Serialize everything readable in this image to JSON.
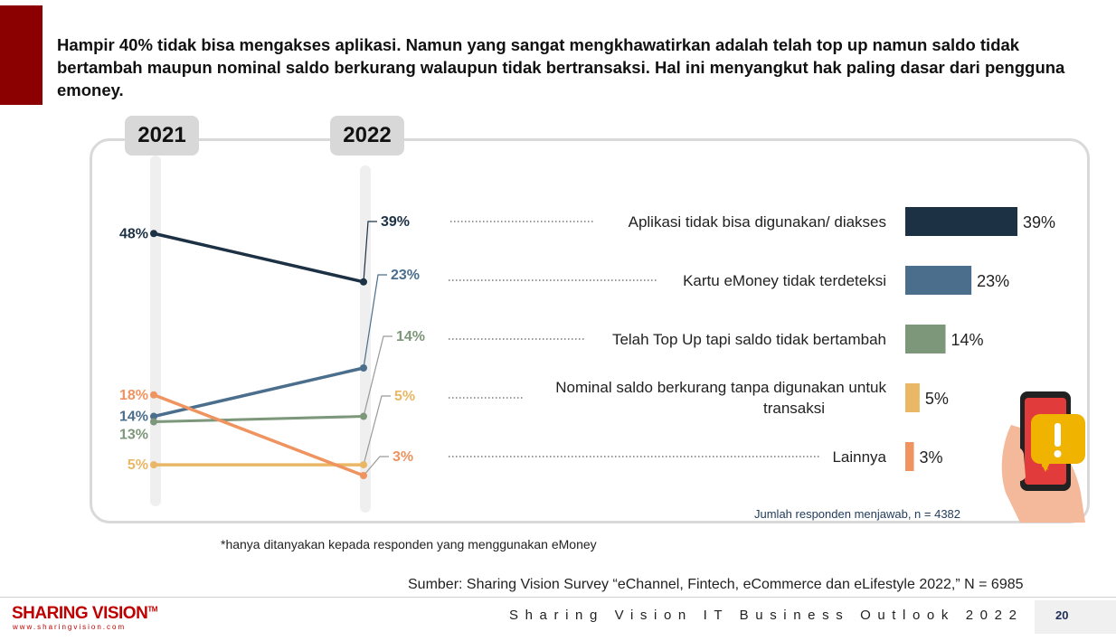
{
  "headline": "Hampir 40% tidak bisa mengakses aplikasi. Namun yang sangat mengkhawatirkan adalah telah top up namun saldo tidak bertambah maupun nominal saldo berkurang walaupun tidak bertransaksi. Hal ini menyangkut hak paling dasar dari pengguna emoney.",
  "years": [
    "2021",
    "2022"
  ],
  "chart_data": [
    {
      "type": "line",
      "x": [
        "2021",
        "2022"
      ],
      "series": [
        {
          "values": [
            48,
            39
          ],
          "labels": [
            "48%",
            "39%"
          ],
          "color": "#1d3145"
        },
        {
          "values": [
            14,
            23
          ],
          "labels": [
            "14%",
            "23%"
          ],
          "color": "#4a6e8c"
        },
        {
          "values": [
            13,
            14
          ],
          "labels": [
            "13%",
            "14%"
          ],
          "color": "#7d977a"
        },
        {
          "values": [
            5,
            5
          ],
          "labels": [
            "5%",
            "5%"
          ],
          "color": "#e9b765"
        },
        {
          "values": [
            18,
            3
          ],
          "labels": [
            "18%",
            "3%"
          ],
          "color": "#ef9460"
        }
      ]
    },
    {
      "type": "bar",
      "orientation": "horizontal",
      "categories": [
        "Aplikasi tidak bisa digunakan/ diakses",
        "Kartu eMoney tidak terdeteksi",
        "Telah Top Up tapi saldo tidak bertambah",
        "Nominal saldo berkurang tanpa digunakan untuk transaksi",
        "Lainnya"
      ],
      "values": [
        39,
        23,
        14,
        5,
        3
      ],
      "value_labels": [
        "39%",
        "23%",
        "14%",
        "5%",
        "3%"
      ],
      "colors": [
        "#1d3145",
        "#4a6e8c",
        "#7d977a",
        "#e9b765",
        "#ef9460"
      ]
    }
  ],
  "respondents_note": "Jumlah responden menjawab, n = 4382",
  "footnote": "*hanya ditanyakan kepada responden yang menggunakan eMoney",
  "source": "Sumber: Sharing Vision Survey “eChannel, Fintech, eCommerce dan eLifestyle 2022,” N = 6985",
  "footer": {
    "logo": "SHARING VISION",
    "logo_tm": "TM",
    "logo_url": "www.sharingvision.com",
    "title": "Sharing Vision IT Business Outlook 2022",
    "page": "20"
  }
}
